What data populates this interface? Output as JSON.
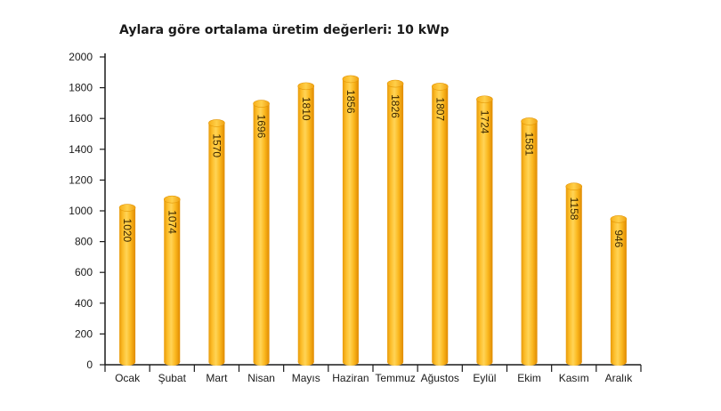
{
  "chart_data": {
    "type": "bar",
    "title": "Aylara göre ortalama üretim değerleri: 10 kWp",
    "xlabel": "",
    "ylabel": "",
    "ylim": [
      0,
      2000
    ],
    "yticks": [
      0,
      200,
      400,
      600,
      800,
      1000,
      1200,
      1400,
      1600,
      1800,
      2000
    ],
    "categories": [
      "Ocak",
      "Şubat",
      "Mart",
      "Nisan",
      "Mayıs",
      "Haziran",
      "Temmuz",
      "Ağustos",
      "Eylül",
      "Ekim",
      "Kasım",
      "Aralık"
    ],
    "values": [
      1020,
      1074,
      1570,
      1696,
      1810,
      1856,
      1826,
      1807,
      1724,
      1581,
      1158,
      946
    ],
    "grid": false,
    "legend": "none",
    "colors": {
      "bar_light": "#FFD24A",
      "bar_mid": "#FBB31C",
      "bar_dark": "#E08A00",
      "bar_top": "#FFC531",
      "axis": "#1a1a1a"
    }
  }
}
